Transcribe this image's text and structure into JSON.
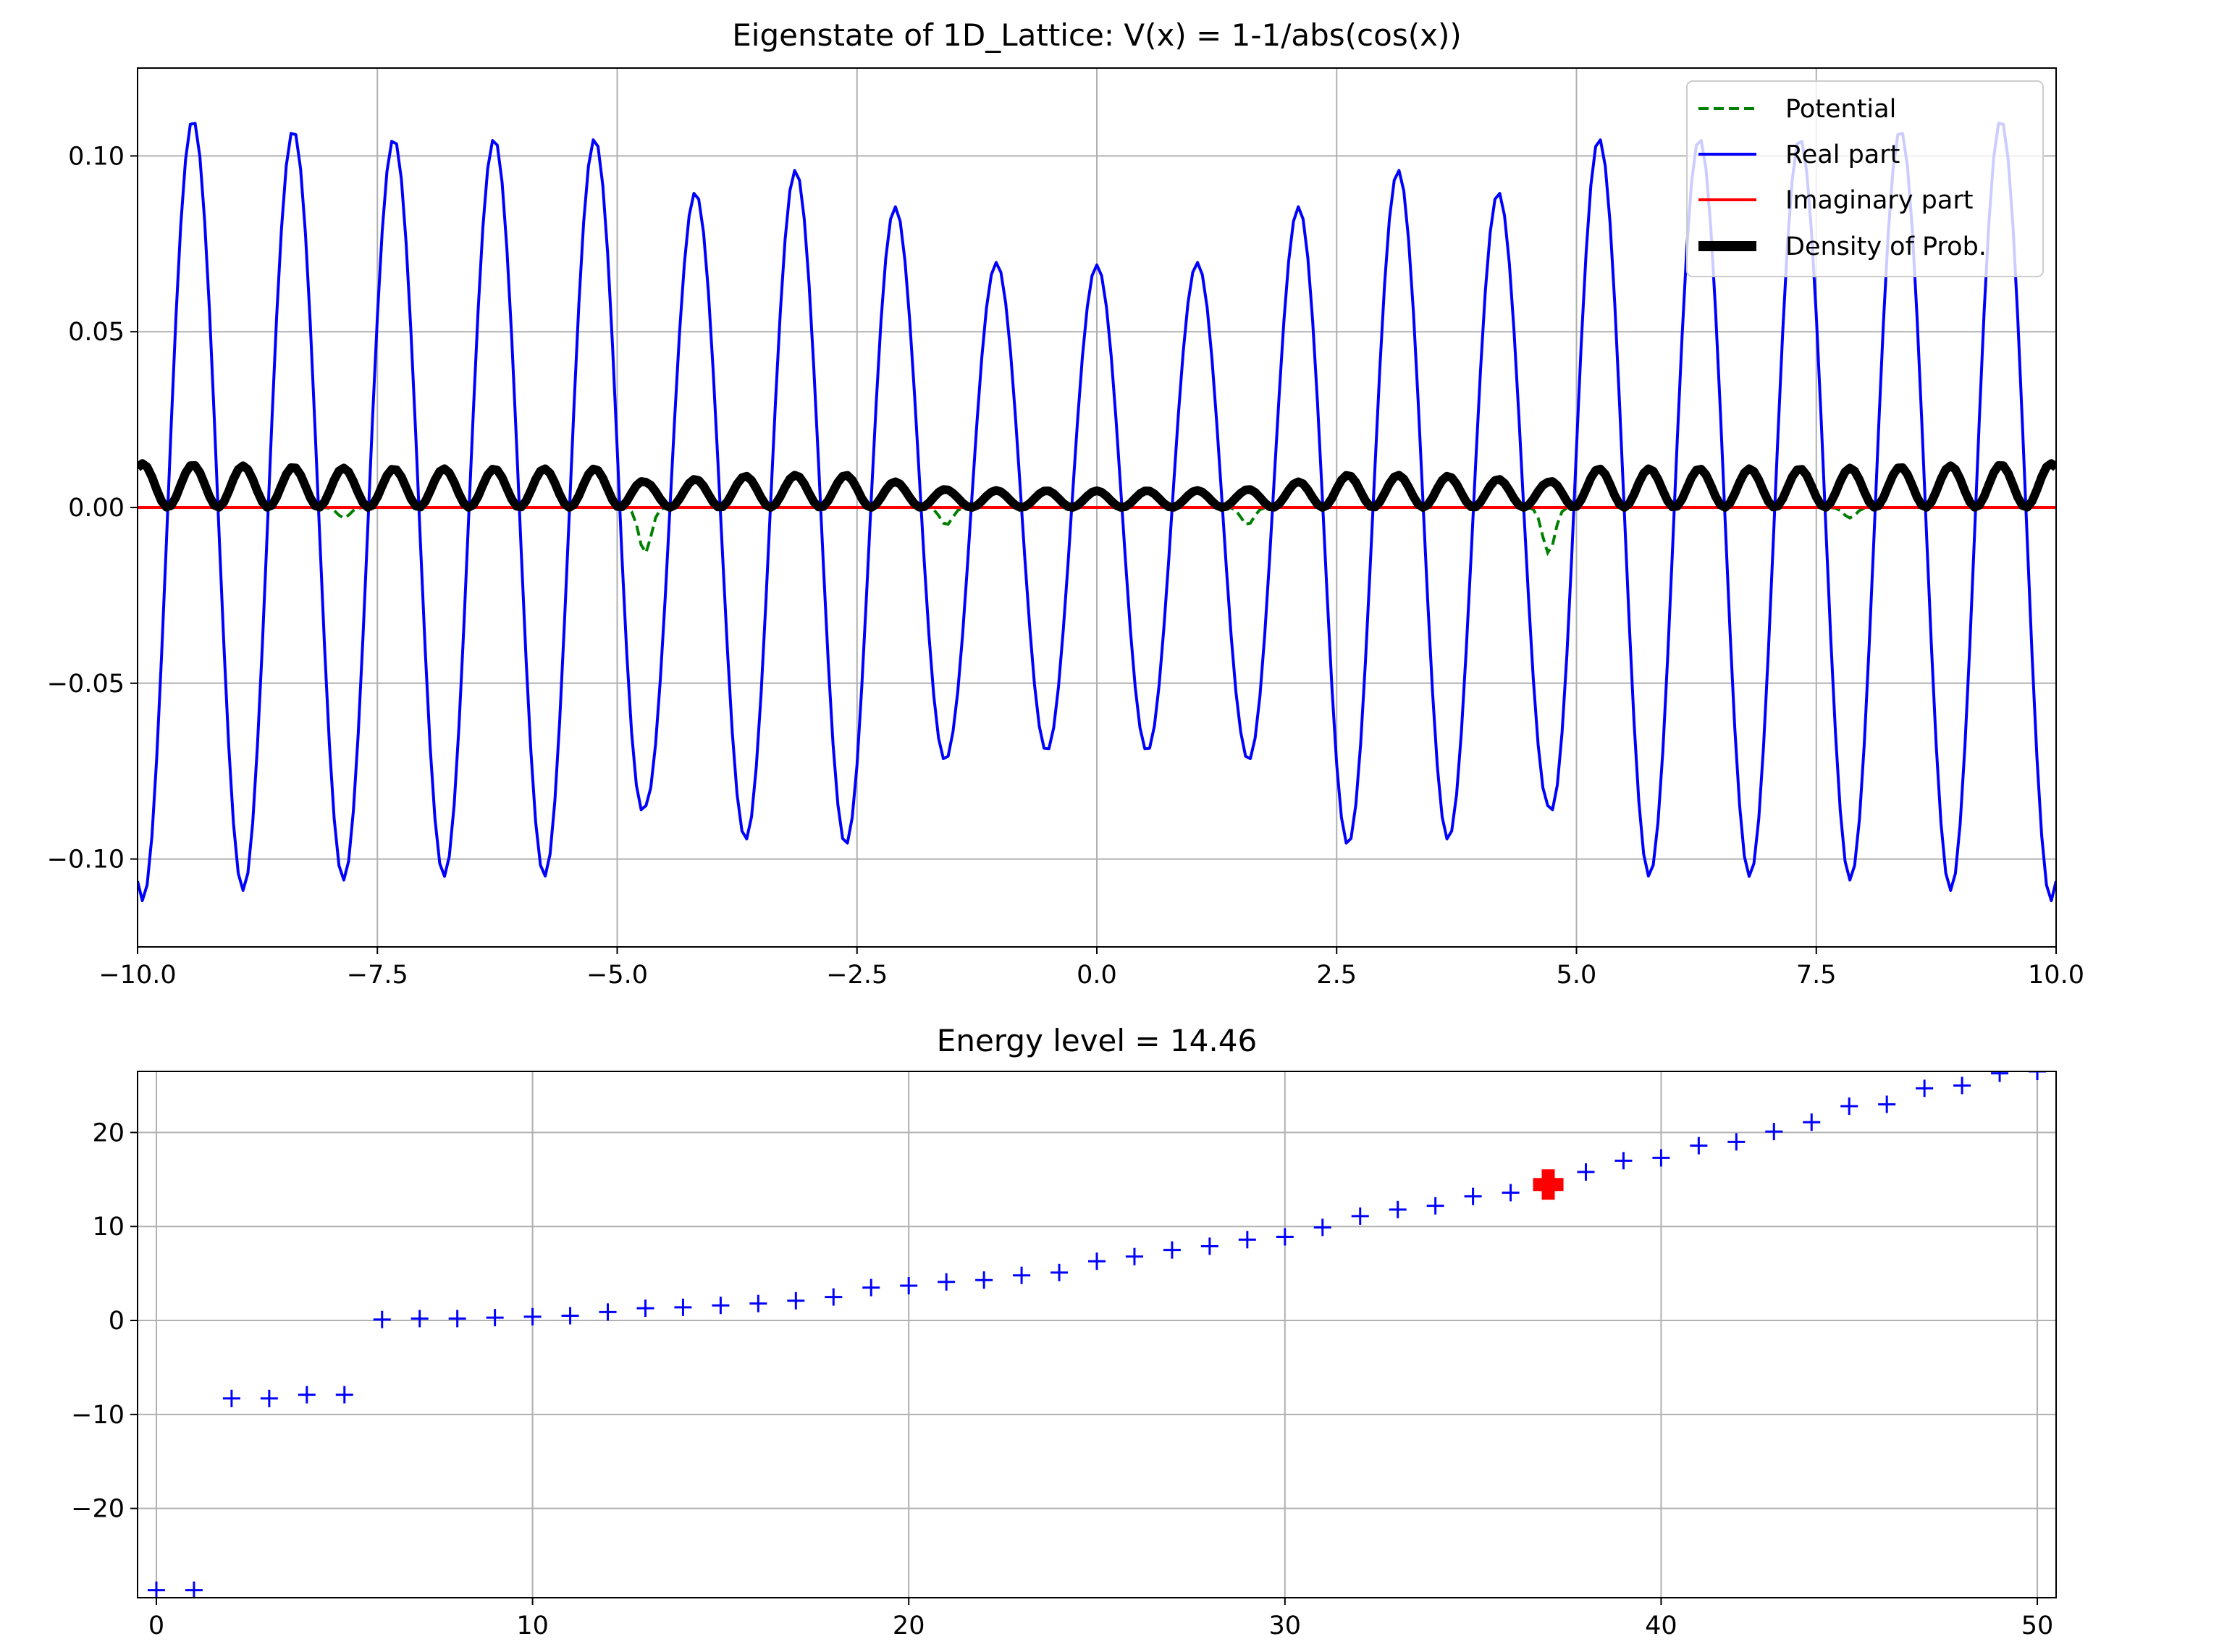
{
  "chart_data": [
    {
      "type": "line",
      "title": "Eigenstate of 1D_Lattice: V(x) = 1-1/abs(cos(x))",
      "xlabel": "",
      "ylabel": "",
      "xlim": [
        -10,
        10
      ],
      "ylim": [
        -0.125,
        0.125
      ],
      "x_ticks": [
        -10,
        -7.5,
        -5,
        -2.5,
        0,
        2.5,
        5,
        7.5,
        10
      ],
      "x_tick_labels": [
        "−10.0",
        "−7.5",
        "−5.0",
        "−2.5",
        "0.0",
        "2.5",
        "5.0",
        "7.5",
        "10.0"
      ],
      "y_ticks": [
        0.1,
        0.05,
        0,
        -0.05,
        -0.1
      ],
      "y_tick_labels": [
        "0.10",
        "0.05",
        "0.00",
        "−0.05",
        "−0.10"
      ],
      "grid": true,
      "legend_position": "upper right",
      "series": [
        {
          "name": "Potential",
          "color": "#008000",
          "style": "dashed",
          "model": "small negative dips near x = k·π/2 + π/2 (odd multiples of π/2)",
          "dips": [
            {
              "x": -7.85,
              "y": -0.003
            },
            {
              "x": -4.71,
              "y": -0.013
            },
            {
              "x": -1.57,
              "y": -0.005
            },
            {
              "x": 1.57,
              "y": -0.005
            },
            {
              "x": 4.71,
              "y": -0.013
            },
            {
              "x": 7.85,
              "y": -0.003
            }
          ]
        },
        {
          "name": "Real part",
          "color": "#0000ff",
          "style": "solid",
          "oscillation_period": 1.047,
          "phase_at_x0": 0,
          "amplitude_envelope": [
            {
              "x": -10,
              "a": 0.112
            },
            {
              "x": -7.5,
              "a": 0.105
            },
            {
              "x": -5,
              "a": 0.105
            },
            {
              "x": -4.7,
              "a": 0.085
            },
            {
              "x": -3.5,
              "a": 0.096
            },
            {
              "x": -2.5,
              "a": 0.096
            },
            {
              "x": -1.5,
              "a": 0.07
            },
            {
              "x": 0,
              "a": 0.069
            },
            {
              "x": 1.5,
              "a": 0.07
            },
            {
              "x": 2.5,
              "a": 0.096
            },
            {
              "x": 3.5,
              "a": 0.096
            },
            {
              "x": 4.7,
              "a": 0.085
            },
            {
              "x": 5,
              "a": 0.105
            },
            {
              "x": 7.5,
              "a": 0.105
            },
            {
              "x": 10,
              "a": 0.112
            }
          ]
        },
        {
          "name": "Imaginary part",
          "color": "#ff0000",
          "style": "solid",
          "constant_value": 0
        },
        {
          "name": "Density of Prob.",
          "color": "#000000",
          "style": "solid-thick",
          "note": "square of Real part"
        }
      ]
    },
    {
      "type": "scatter",
      "title": "Energy level = 14.46",
      "xlabel": "",
      "ylabel": "",
      "xlim": [
        -0.5,
        50.5
      ],
      "ylim": [
        -29.5,
        26.5
      ],
      "x_ticks": [
        0,
        10,
        20,
        30,
        40,
        50
      ],
      "x_tick_labels": [
        "0",
        "10",
        "20",
        "30",
        "40",
        "50"
      ],
      "y_ticks": [
        20,
        10,
        0,
        -10,
        -20
      ],
      "y_tick_labels": [
        "20",
        "10",
        "0",
        "−10",
        "−20"
      ],
      "grid": true,
      "marker": "+",
      "marker_color": "#0000ff",
      "highlight": {
        "x": 37,
        "y": 14.46,
        "color": "#ff0000"
      },
      "x": [
        0,
        1,
        2,
        3,
        4,
        5,
        6,
        7,
        8,
        9,
        10,
        11,
        12,
        13,
        14,
        15,
        16,
        17,
        18,
        19,
        20,
        21,
        22,
        23,
        24,
        25,
        26,
        27,
        28,
        29,
        30,
        31,
        32,
        33,
        34,
        35,
        36,
        37,
        38,
        39,
        40,
        41,
        42,
        43,
        44,
        45,
        46,
        47,
        48,
        49,
        50
      ],
      "y": [
        -28.7,
        -28.7,
        -8.3,
        -8.3,
        -7.9,
        -7.9,
        0.1,
        0.2,
        0.2,
        0.3,
        0.4,
        0.5,
        0.9,
        1.3,
        1.4,
        1.6,
        1.8,
        2.1,
        2.5,
        3.5,
        3.7,
        4.1,
        4.3,
        4.8,
        5.1,
        6.3,
        6.8,
        7.5,
        7.9,
        8.6,
        8.9,
        9.9,
        11.1,
        11.8,
        12.2,
        13.2,
        13.6,
        14.46,
        15.8,
        17.0,
        17.3,
        18.6,
        19.0,
        20.1,
        21.1,
        22.8,
        23.0,
        24.7,
        25.0,
        26.3,
        26.5
      ]
    }
  ]
}
